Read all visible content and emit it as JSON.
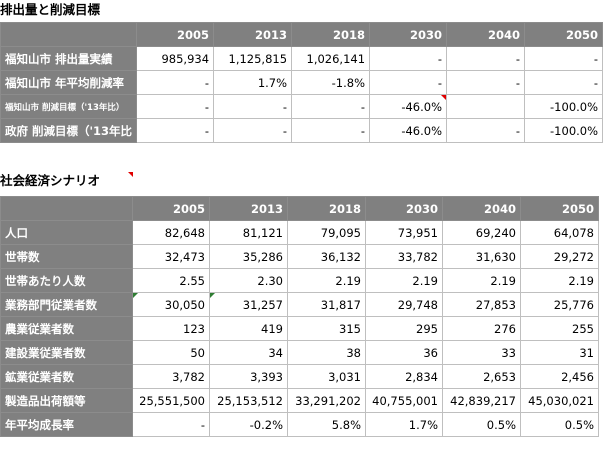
{
  "section1": {
    "title": "排出量と削減目標",
    "years": [
      "2005",
      "2013",
      "2018",
      "2030",
      "2040",
      "2050"
    ],
    "rows": [
      {
        "label": "福知山市 排出量実績",
        "values": [
          "985,934",
          "1,125,815",
          "1,026,141",
          "-",
          "-",
          "-"
        ]
      },
      {
        "label": "福知山市 年平均削減率",
        "values": [
          "-",
          "1.7%",
          "-1.8%",
          "-",
          "-",
          "-"
        ]
      },
      {
        "label": "福知山市 削減目標（'13年比）",
        "values": [
          "-",
          "-",
          "-",
          "-46.0%",
          "",
          "-100.0%"
        ]
      },
      {
        "label": "政府 削減目標（'13年比",
        "values": [
          "-",
          "-",
          "-",
          "-46.0%",
          "-",
          "-100.0%"
        ]
      }
    ]
  },
  "section2": {
    "title": "社会経済シナリオ",
    "years": [
      "2005",
      "2013",
      "2018",
      "2030",
      "2040",
      "2050"
    ],
    "rows": [
      {
        "label": "人口",
        "values": [
          "82,648",
          "81,121",
          "79,095",
          "73,951",
          "69,240",
          "64,078"
        ]
      },
      {
        "label": "世帯数",
        "values": [
          "32,473",
          "35,286",
          "36,132",
          "33,782",
          "31,630",
          "29,272"
        ]
      },
      {
        "label": "世帯あたり人数",
        "values": [
          "2.55",
          "2.30",
          "2.19",
          "2.19",
          "2.19",
          "2.19"
        ]
      },
      {
        "label": "業務部門従業者数",
        "values": [
          "30,050",
          "31,257",
          "31,817",
          "29,748",
          "27,853",
          "25,776"
        ]
      },
      {
        "label": "農業従業者数",
        "values": [
          "123",
          "419",
          "315",
          "295",
          "276",
          "255"
        ]
      },
      {
        "label": "建設業従業者数",
        "values": [
          "50",
          "34",
          "38",
          "36",
          "33",
          "31"
        ]
      },
      {
        "label": "鉱業従業者数",
        "values": [
          "3,782",
          "3,393",
          "3,031",
          "2,834",
          "2,653",
          "2,456"
        ]
      },
      {
        "label": "製造品出荷額等",
        "values": [
          "25,551,500",
          "25,153,512",
          "33,291,202",
          "40,755,001",
          "42,839,217",
          "45,030,021"
        ]
      },
      {
        "label": "年平均成長率",
        "values": [
          "-",
          "-0.2%",
          "5.8%",
          "1.7%",
          "0.5%",
          "0.5%"
        ]
      }
    ]
  },
  "colors": {
    "header_bg": "#808080",
    "header_text": "#ffffff",
    "highlight_bg": "#fce4d6",
    "comment_marker": "#e00000",
    "error_marker": "#2e7d32"
  }
}
